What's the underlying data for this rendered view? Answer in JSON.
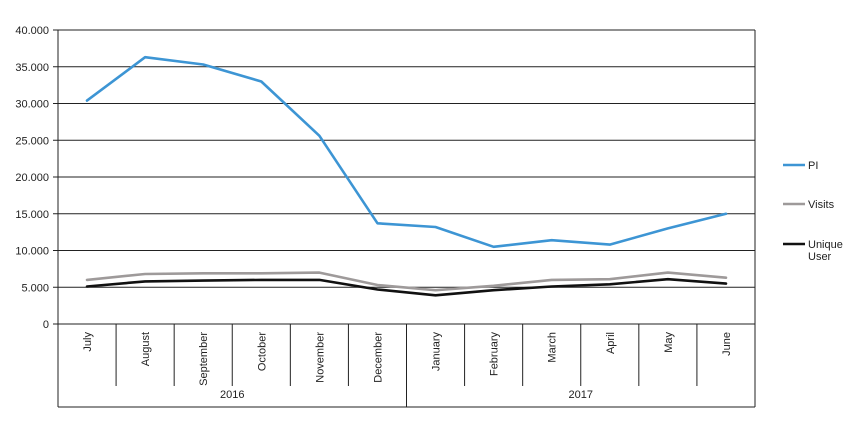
{
  "chart_data": {
    "type": "line",
    "categories": [
      "July",
      "August",
      "September",
      "October",
      "November",
      "December",
      "January",
      "February",
      "March",
      "April",
      "May",
      "June"
    ],
    "year_groups": [
      {
        "label": "2016",
        "from": 0,
        "to": 5
      },
      {
        "label": "2017",
        "from": 6,
        "to": 11
      }
    ],
    "y_ticks": [
      "0",
      "5.000",
      "10.000",
      "15.000",
      "20.000",
      "25.000",
      "30.000",
      "35.000",
      "40.000"
    ],
    "ylim": [
      0,
      40000
    ],
    "grid": true,
    "legend_position": "right",
    "series": [
      {
        "name": "PI",
        "color": "#3d95d4",
        "values": [
          30400,
          36300,
          35300,
          33000,
          25600,
          13700,
          13200,
          10500,
          11400,
          10800,
          13000,
          15000
        ]
      },
      {
        "name": "Visits",
        "color": "#9e9a9a",
        "values": [
          6000,
          6800,
          6900,
          6900,
          7000,
          5300,
          4600,
          5200,
          6000,
          6100,
          7000,
          6300
        ]
      },
      {
        "name": "Unique User",
        "color": "#111111",
        "values": [
          5100,
          5800,
          5900,
          6000,
          6000,
          4700,
          3900,
          4600,
          5100,
          5400,
          6100,
          5500
        ]
      }
    ]
  }
}
